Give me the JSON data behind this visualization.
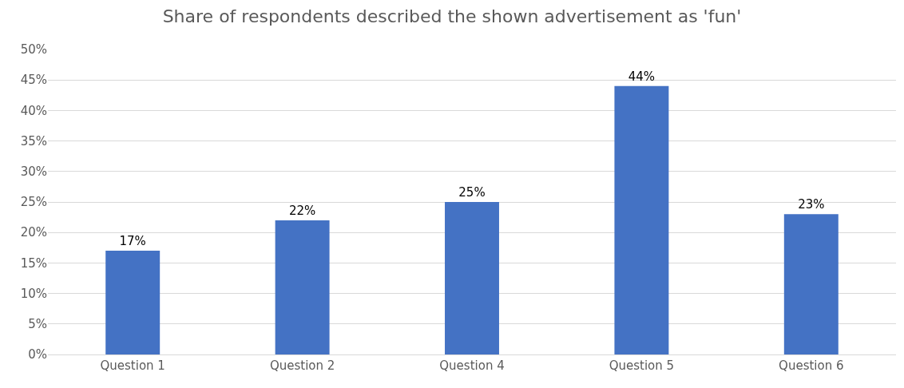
{
  "chart_data": {
    "type": "bar",
    "title": "Share of respondents described the shown advertisement as 'fun'",
    "categories": [
      "Question 1",
      "Question 2",
      "Question 4",
      "Question 5",
      "Question 6"
    ],
    "values": [
      17,
      22,
      25,
      44,
      23
    ],
    "value_labels": [
      "17%",
      "22%",
      "25%",
      "44%",
      "23%"
    ],
    "color": "#4472c4",
    "ylim": [
      0,
      50
    ],
    "yticks": [
      {
        "value": 0,
        "label": "0%"
      },
      {
        "value": 5,
        "label": "5%"
      },
      {
        "value": 10,
        "label": "10%"
      },
      {
        "value": 15,
        "label": "15%"
      },
      {
        "value": 20,
        "label": "20%"
      },
      {
        "value": 25,
        "label": "25%"
      },
      {
        "value": 30,
        "label": "30%"
      },
      {
        "value": 35,
        "label": "35%"
      },
      {
        "value": 40,
        "label": "40%"
      },
      {
        "value": 45,
        "label": "45%"
      },
      {
        "value": 50,
        "label": "50%"
      }
    ],
    "grid": "y"
  }
}
